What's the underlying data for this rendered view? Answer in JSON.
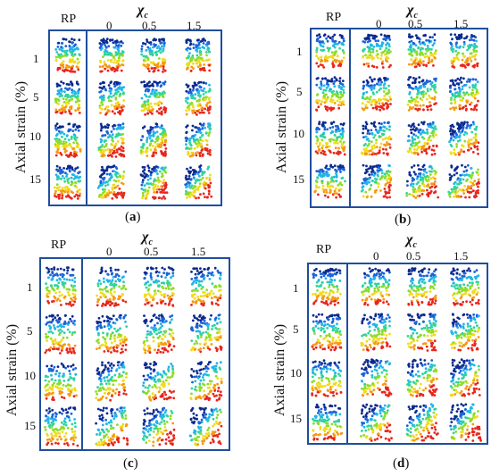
{
  "figure": {
    "chi_label": "χ",
    "chi_sub": "c",
    "rp_label": "RP",
    "chi_values": [
      "0",
      "0.5",
      "1.5"
    ],
    "ylabel": "Axial strain (%)",
    "strain_rows": [
      "1",
      "5",
      "10",
      "15"
    ],
    "colors": [
      "#0b2a8f",
      "#1b63d6",
      "#22b4e8",
      "#2fd3a0",
      "#8cdc2a",
      "#f0dc1e",
      "#f59a14",
      "#e8261c"
    ]
  },
  "panels": [
    {
      "id": "a",
      "caption_open": "(",
      "caption_letter": "a",
      "caption_close": ")"
    },
    {
      "id": "b",
      "caption_open": "(",
      "caption_letter": "b",
      "caption_close": ")"
    },
    {
      "id": "c",
      "caption_open": "(",
      "caption_letter": "c",
      "caption_close": ")"
    },
    {
      "id": "d",
      "caption_open": "(",
      "caption_letter": "d",
      "caption_close": ")"
    }
  ]
}
